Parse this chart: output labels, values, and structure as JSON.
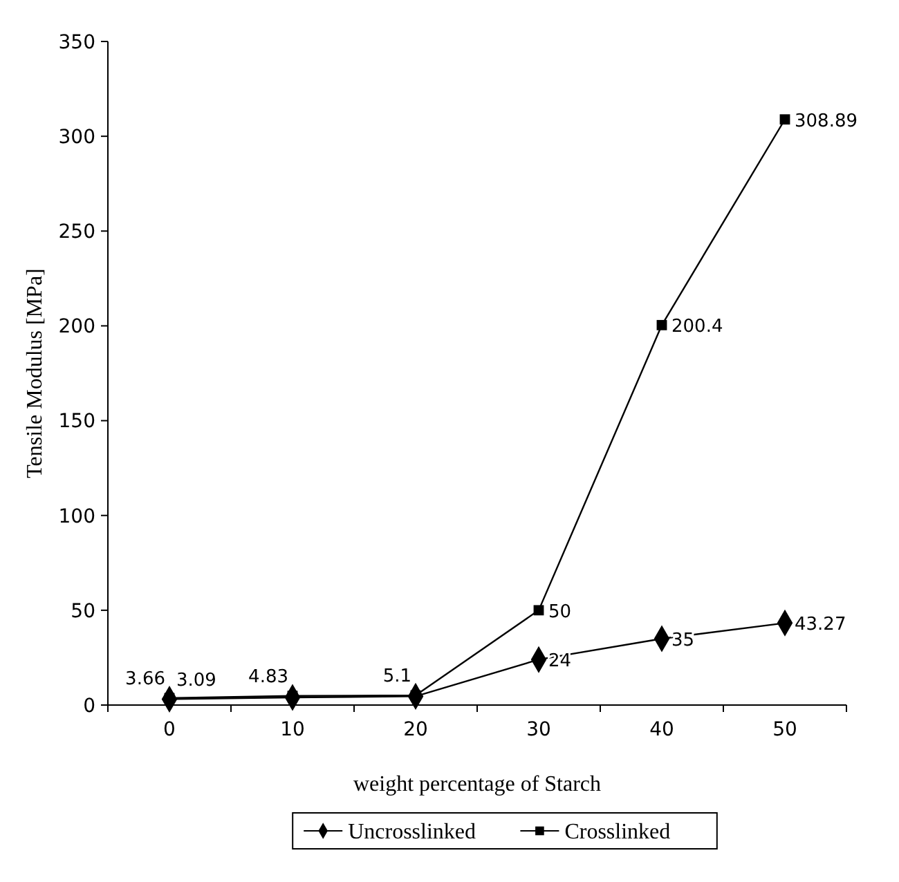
{
  "chart_data": {
    "type": "line",
    "xlabel": "weight percentage of Starch",
    "ylabel": "Tensile Modulus [MPa]",
    "categories": [
      "0",
      "10",
      "20",
      "30",
      "40",
      "50"
    ],
    "series": [
      {
        "name": "Uncrosslinked",
        "color": "#000000",
        "marker": "diamond",
        "values": [
          3.09,
          4.0,
          4.6,
          24,
          35,
          43.27
        ],
        "value_labels": [
          "3.09",
          null,
          null,
          "24",
          "35",
          "43.27"
        ]
      },
      {
        "name": "Crosslinked",
        "color": "#000000",
        "marker": "square",
        "values": [
          3.66,
          4.83,
          5.1,
          50,
          200.4,
          308.89
        ],
        "value_labels": [
          "3.66",
          "4.83",
          "5.1",
          "50",
          "200.4",
          "308.89"
        ]
      }
    ],
    "ylim": [
      0,
      350
    ],
    "yticks": [
      0,
      50,
      100,
      150,
      200,
      250,
      300,
      350
    ],
    "grid": false,
    "legend": "bottom",
    "line_style": "solid"
  }
}
